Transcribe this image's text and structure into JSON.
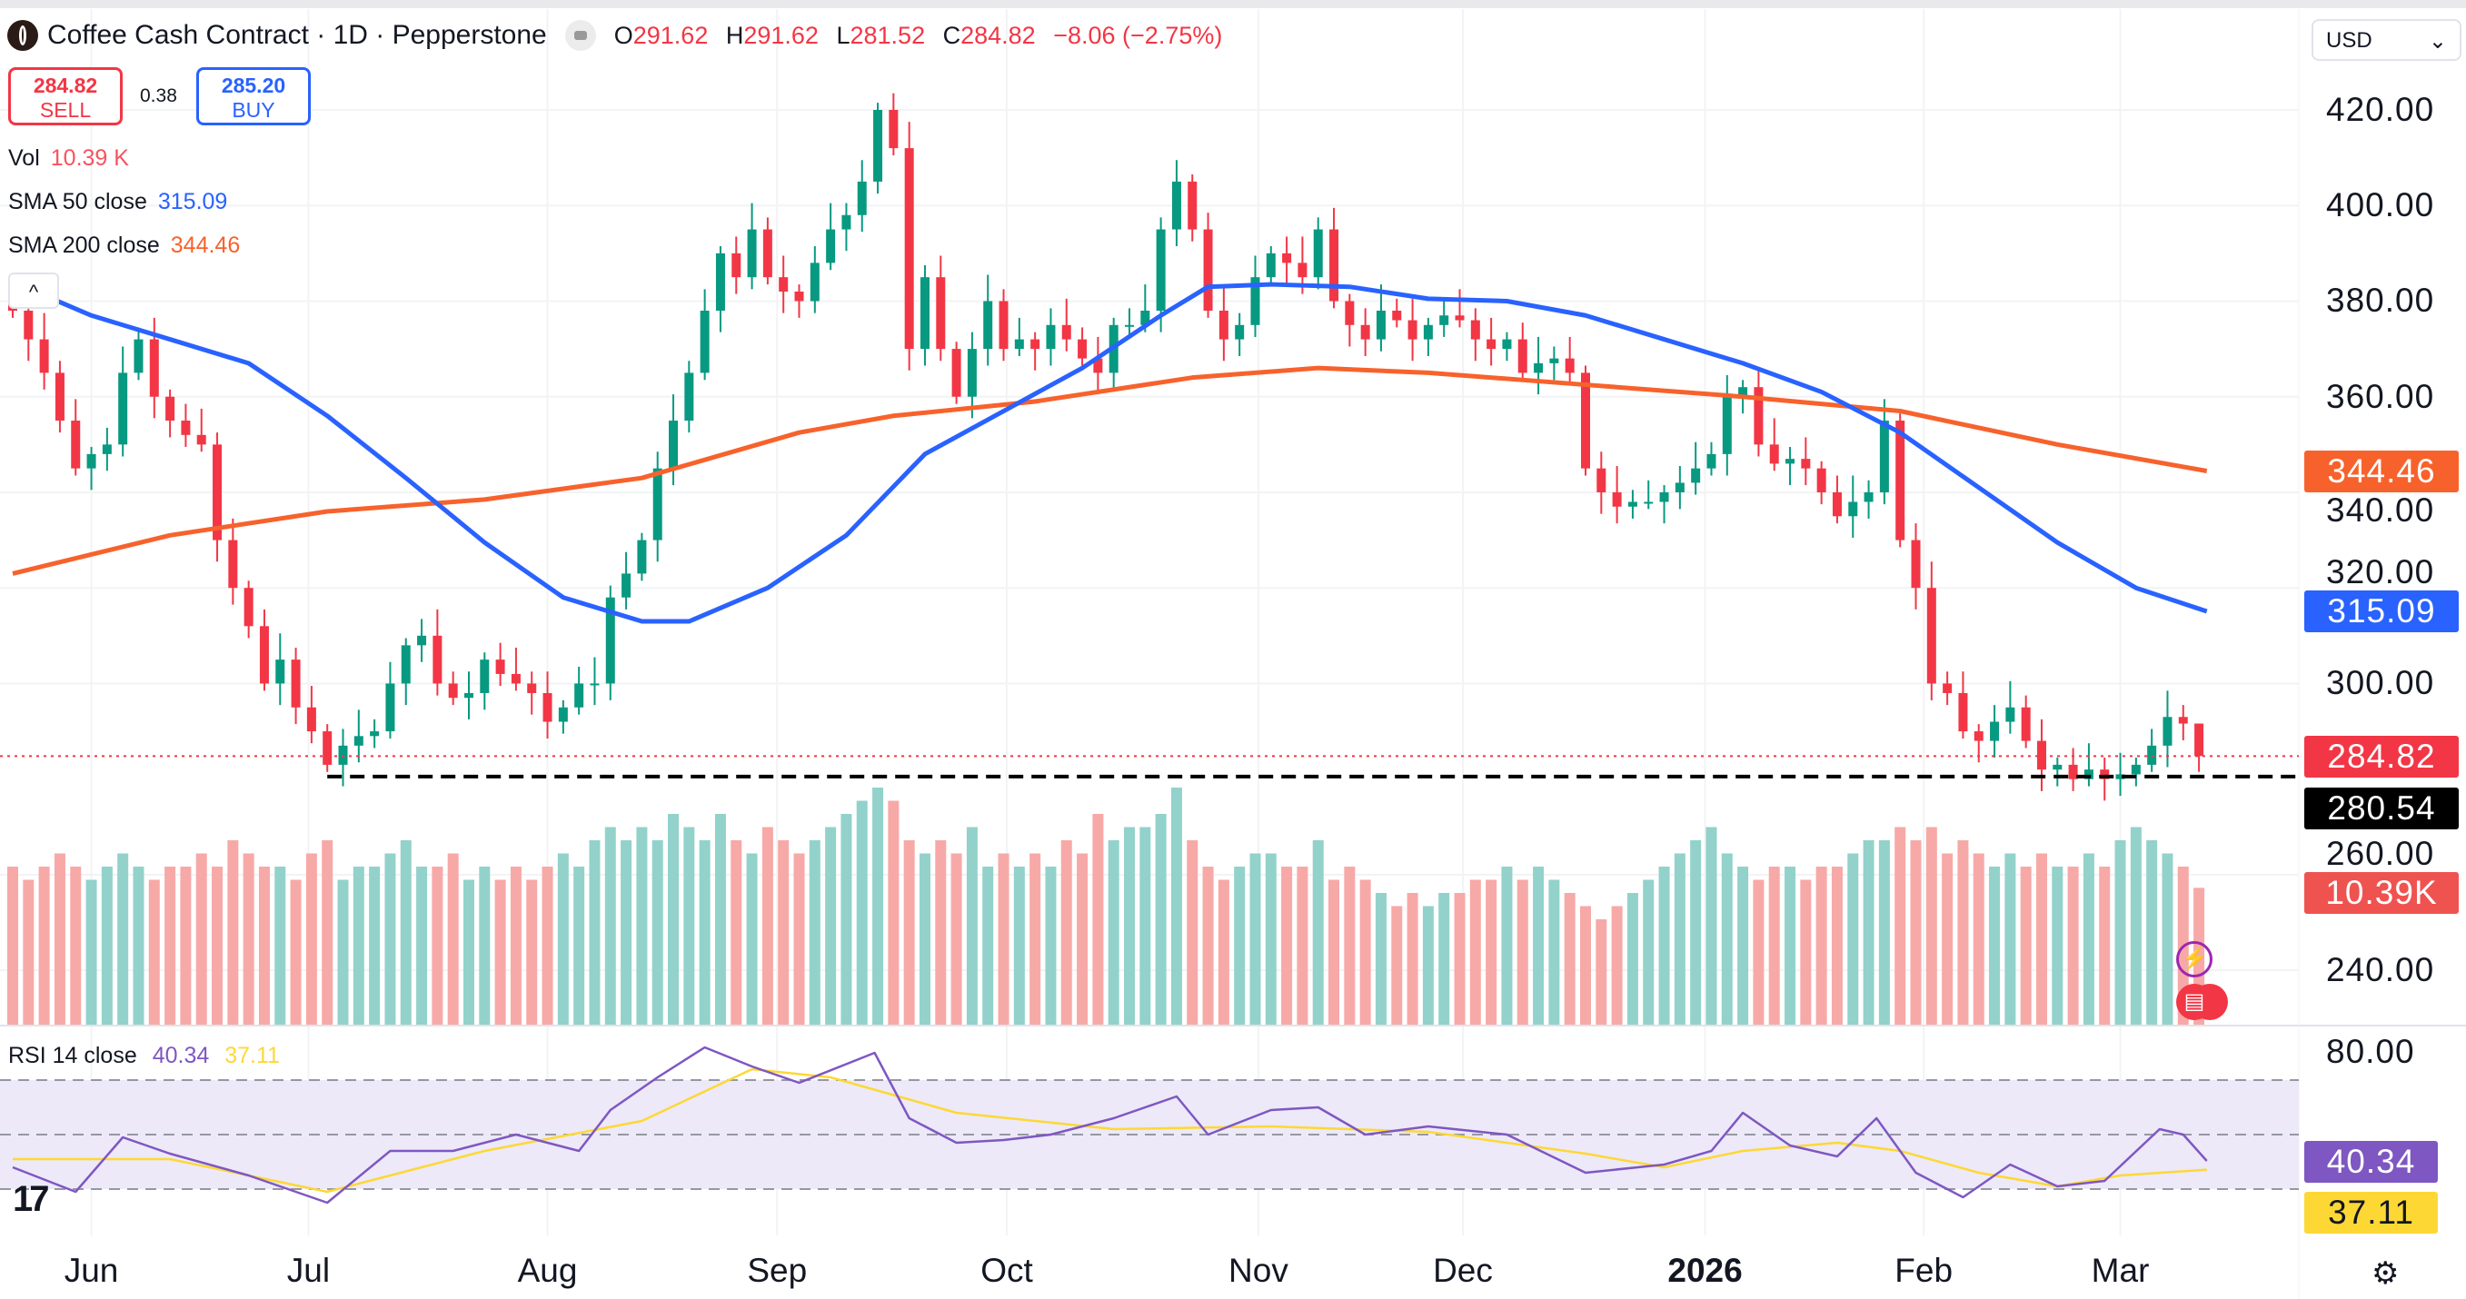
{
  "header": {
    "symbol": "Coffee Cash Contract · 1D · Pepperstone",
    "open_label": "O",
    "open": "291.62",
    "high_label": "H",
    "high": "291.62",
    "low_label": "L",
    "low": "281.52",
    "close_label": "C",
    "close": "284.82",
    "change": "−8.06 (−2.75%)"
  },
  "trade": {
    "sell_price": "284.82",
    "sell_label": "SELL",
    "spread": "0.38",
    "buy_price": "285.20",
    "buy_label": "BUY"
  },
  "legend": {
    "vol_label": "Vol",
    "vol_value": "10.39 K",
    "sma50_label": "SMA 50 close",
    "sma50_value": "315.09",
    "sma200_label": "SMA 200 close",
    "sma200_value": "344.46",
    "rsi_label": "RSI 14 close",
    "rsi_value": "40.34",
    "rsi_ma_value": "37.11"
  },
  "currency": "USD",
  "collapse_icon": "^",
  "settings_icon": "⚙",
  "tv_logo": "17",
  "colors": {
    "up": "#089981",
    "down": "#f23645",
    "vol_up": "#92d2cb",
    "vol_down": "#f7a9a7",
    "sma50": "#2962ff",
    "sma200": "#f7622c",
    "rsi": "#7e57c2",
    "rsi_ma": "#fdd835"
  },
  "price_axis": [
    "420.00",
    "400.00",
    "380.00",
    "360.00",
    "340.00",
    "320.00",
    "300.00",
    "260.00",
    "240.00"
  ],
  "price_axis_values": [
    420,
    400,
    380,
    360,
    340,
    320,
    300,
    260,
    240
  ],
  "rsi_axis": [
    "80.00"
  ],
  "badges": {
    "sma200": "344.46",
    "sma50": "315.09",
    "last": "284.82",
    "support": "280.54",
    "volume": "10.39K",
    "rsi": "40.34",
    "rsi_ma": "37.11"
  },
  "chart_data": {
    "type": "candlestick",
    "support_level": 280.54,
    "last_price": 284.82,
    "last_candle": {
      "open": 291.62,
      "high": 291.62,
      "low": 281.52,
      "close": 284.82
    },
    "closes": [
      378,
      372,
      365,
      355,
      345,
      348,
      350,
      365,
      372,
      360,
      355,
      352,
      350,
      330,
      320,
      312,
      300,
      305,
      295,
      290,
      283,
      287,
      289,
      290,
      300,
      308,
      310,
      300,
      297,
      298,
      305,
      302,
      300,
      298,
      292,
      295,
      300,
      300,
      318,
      323,
      330,
      345,
      355,
      365,
      378,
      390,
      385,
      395,
      385,
      382,
      380,
      388,
      395,
      398,
      405,
      420,
      412,
      370,
      385,
      370,
      360,
      370,
      380,
      370,
      372,
      370,
      375,
      372,
      368,
      365,
      375,
      375,
      378,
      395,
      405,
      395,
      378,
      372,
      375,
      385,
      390,
      388,
      385,
      395,
      380,
      375,
      372,
      378,
      376,
      372,
      375,
      377,
      376,
      372,
      370,
      372,
      365,
      367,
      368,
      365,
      345,
      340,
      337,
      338,
      338,
      340,
      342,
      345,
      348,
      360,
      362,
      350,
      346,
      347,
      345,
      340,
      335,
      338,
      340,
      355,
      330,
      320,
      300,
      298,
      290,
      288,
      292,
      295,
      288,
      282,
      283,
      280,
      282,
      280,
      281,
      283,
      287,
      293,
      291.62,
      284.82
    ],
    "volumes_k": [
      12,
      11,
      12,
      13,
      12,
      11,
      12,
      13,
      12,
      11,
      12,
      12,
      13,
      12,
      14,
      13,
      12,
      12,
      11,
      13,
      14,
      11,
      12,
      12,
      13,
      14,
      12,
      12,
      13,
      11,
      12,
      11,
      12,
      11,
      12,
      13,
      12,
      14,
      15,
      14,
      15,
      14,
      16,
      15,
      14,
      16,
      14,
      13,
      15,
      14,
      13,
      14,
      15,
      16,
      17,
      18,
      17,
      14,
      13,
      14,
      13,
      15,
      12,
      13,
      12,
      13,
      12,
      14,
      13,
      16,
      14,
      15,
      15,
      16,
      18,
      14,
      12,
      11,
      12,
      13,
      13,
      12,
      12,
      14,
      11,
      12,
      11,
      10,
      9,
      10,
      9,
      10,
      10,
      11,
      11,
      12,
      11,
      12,
      11,
      10,
      9,
      8,
      9,
      10,
      11,
      12,
      13,
      14,
      15,
      13,
      12,
      11,
      12,
      12,
      11,
      12,
      12,
      13,
      14,
      14,
      15,
      14,
      15,
      13,
      14,
      13,
      12,
      13,
      12,
      13,
      12,
      12,
      13,
      12,
      14,
      15,
      14,
      13,
      12,
      10.39
    ],
    "sma50": [
      [
        0,
        384
      ],
      [
        5,
        377
      ],
      [
        10,
        372
      ],
      [
        15,
        367
      ],
      [
        20,
        356
      ],
      [
        25,
        343
      ],
      [
        30,
        329.5
      ],
      [
        35,
        318
      ],
      [
        40,
        313
      ],
      [
        43,
        313
      ],
      [
        48,
        320
      ],
      [
        53,
        331
      ],
      [
        58,
        348
      ],
      [
        63,
        357
      ],
      [
        68,
        366
      ],
      [
        73,
        377
      ],
      [
        76,
        383
      ],
      [
        80,
        383.5
      ],
      [
        85,
        383
      ],
      [
        90,
        380.5
      ],
      [
        95,
        380
      ],
      [
        100,
        377
      ],
      [
        105,
        372
      ],
      [
        110,
        367
      ],
      [
        115,
        361
      ],
      [
        120,
        352.5
      ],
      [
        125,
        341
      ],
      [
        130,
        329.5
      ],
      [
        135,
        320
      ],
      [
        139.5,
        315.09
      ]
    ],
    "sma200": [
      [
        0,
        323
      ],
      [
        10,
        331
      ],
      [
        20,
        336
      ],
      [
        30,
        338.5
      ],
      [
        40,
        343
      ],
      [
        50,
        352.5
      ],
      [
        56,
        356
      ],
      [
        65,
        359
      ],
      [
        75,
        364
      ],
      [
        83,
        366
      ],
      [
        90,
        365
      ],
      [
        100,
        362.5
      ],
      [
        110,
        360
      ],
      [
        120,
        357
      ],
      [
        130,
        350
      ],
      [
        139.5,
        344.46
      ]
    ],
    "rsi": [
      [
        0,
        38
      ],
      [
        4,
        29
      ],
      [
        7,
        49
      ],
      [
        10,
        43
      ],
      [
        15,
        35
      ],
      [
        20,
        25
      ],
      [
        24,
        44
      ],
      [
        28,
        44
      ],
      [
        32,
        50
      ],
      [
        36,
        44
      ],
      [
        38,
        59
      ],
      [
        41,
        71
      ],
      [
        44,
        82
      ],
      [
        47,
        75
      ],
      [
        50,
        69
      ],
      [
        54.8,
        80
      ],
      [
        57,
        56
      ],
      [
        60,
        47
      ],
      [
        63,
        48
      ],
      [
        66,
        50
      ],
      [
        70,
        56
      ],
      [
        74,
        64
      ],
      [
        76,
        50
      ],
      [
        80,
        59
      ],
      [
        83,
        60
      ],
      [
        86,
        50
      ],
      [
        90,
        53
      ],
      [
        95,
        50
      ],
      [
        100,
        36
      ],
      [
        105,
        39
      ],
      [
        108,
        44
      ],
      [
        110,
        58
      ],
      [
        113,
        46
      ],
      [
        116,
        42
      ],
      [
        118.5,
        56
      ],
      [
        121,
        36
      ],
      [
        124,
        27
      ],
      [
        127,
        39
      ],
      [
        130,
        31
      ],
      [
        133,
        33
      ],
      [
        136.5,
        52
      ],
      [
        138,
        50
      ],
      [
        139.5,
        40.34
      ]
    ],
    "rsi_ma": [
      [
        0,
        41
      ],
      [
        10,
        41
      ],
      [
        20,
        29
      ],
      [
        30,
        44
      ],
      [
        40,
        55
      ],
      [
        47,
        74
      ],
      [
        52,
        71
      ],
      [
        60,
        58
      ],
      [
        70,
        52
      ],
      [
        80,
        53
      ],
      [
        90,
        51
      ],
      [
        100,
        43
      ],
      [
        105,
        38
      ],
      [
        110,
        44
      ],
      [
        116,
        47
      ],
      [
        120,
        44
      ],
      [
        125,
        36
      ],
      [
        130,
        31
      ],
      [
        134,
        35
      ],
      [
        139.5,
        37.11
      ]
    ],
    "rsi_levels": [
      70,
      50,
      30
    ],
    "x_ticks": [
      {
        "label": "Jun",
        "index": 5
      },
      {
        "label": "Jul",
        "index": 18.8
      },
      {
        "label": "Aug",
        "index": 34
      },
      {
        "label": "Sep",
        "index": 48.6
      },
      {
        "label": "Oct",
        "index": 63.2
      },
      {
        "label": "Nov",
        "index": 79.2
      },
      {
        "label": "Dec",
        "index": 92.2
      },
      {
        "label": "2026",
        "index": 107.6,
        "bold": true
      },
      {
        "label": "Feb",
        "index": 121.5
      },
      {
        "label": "Mar",
        "index": 134
      }
    ]
  }
}
